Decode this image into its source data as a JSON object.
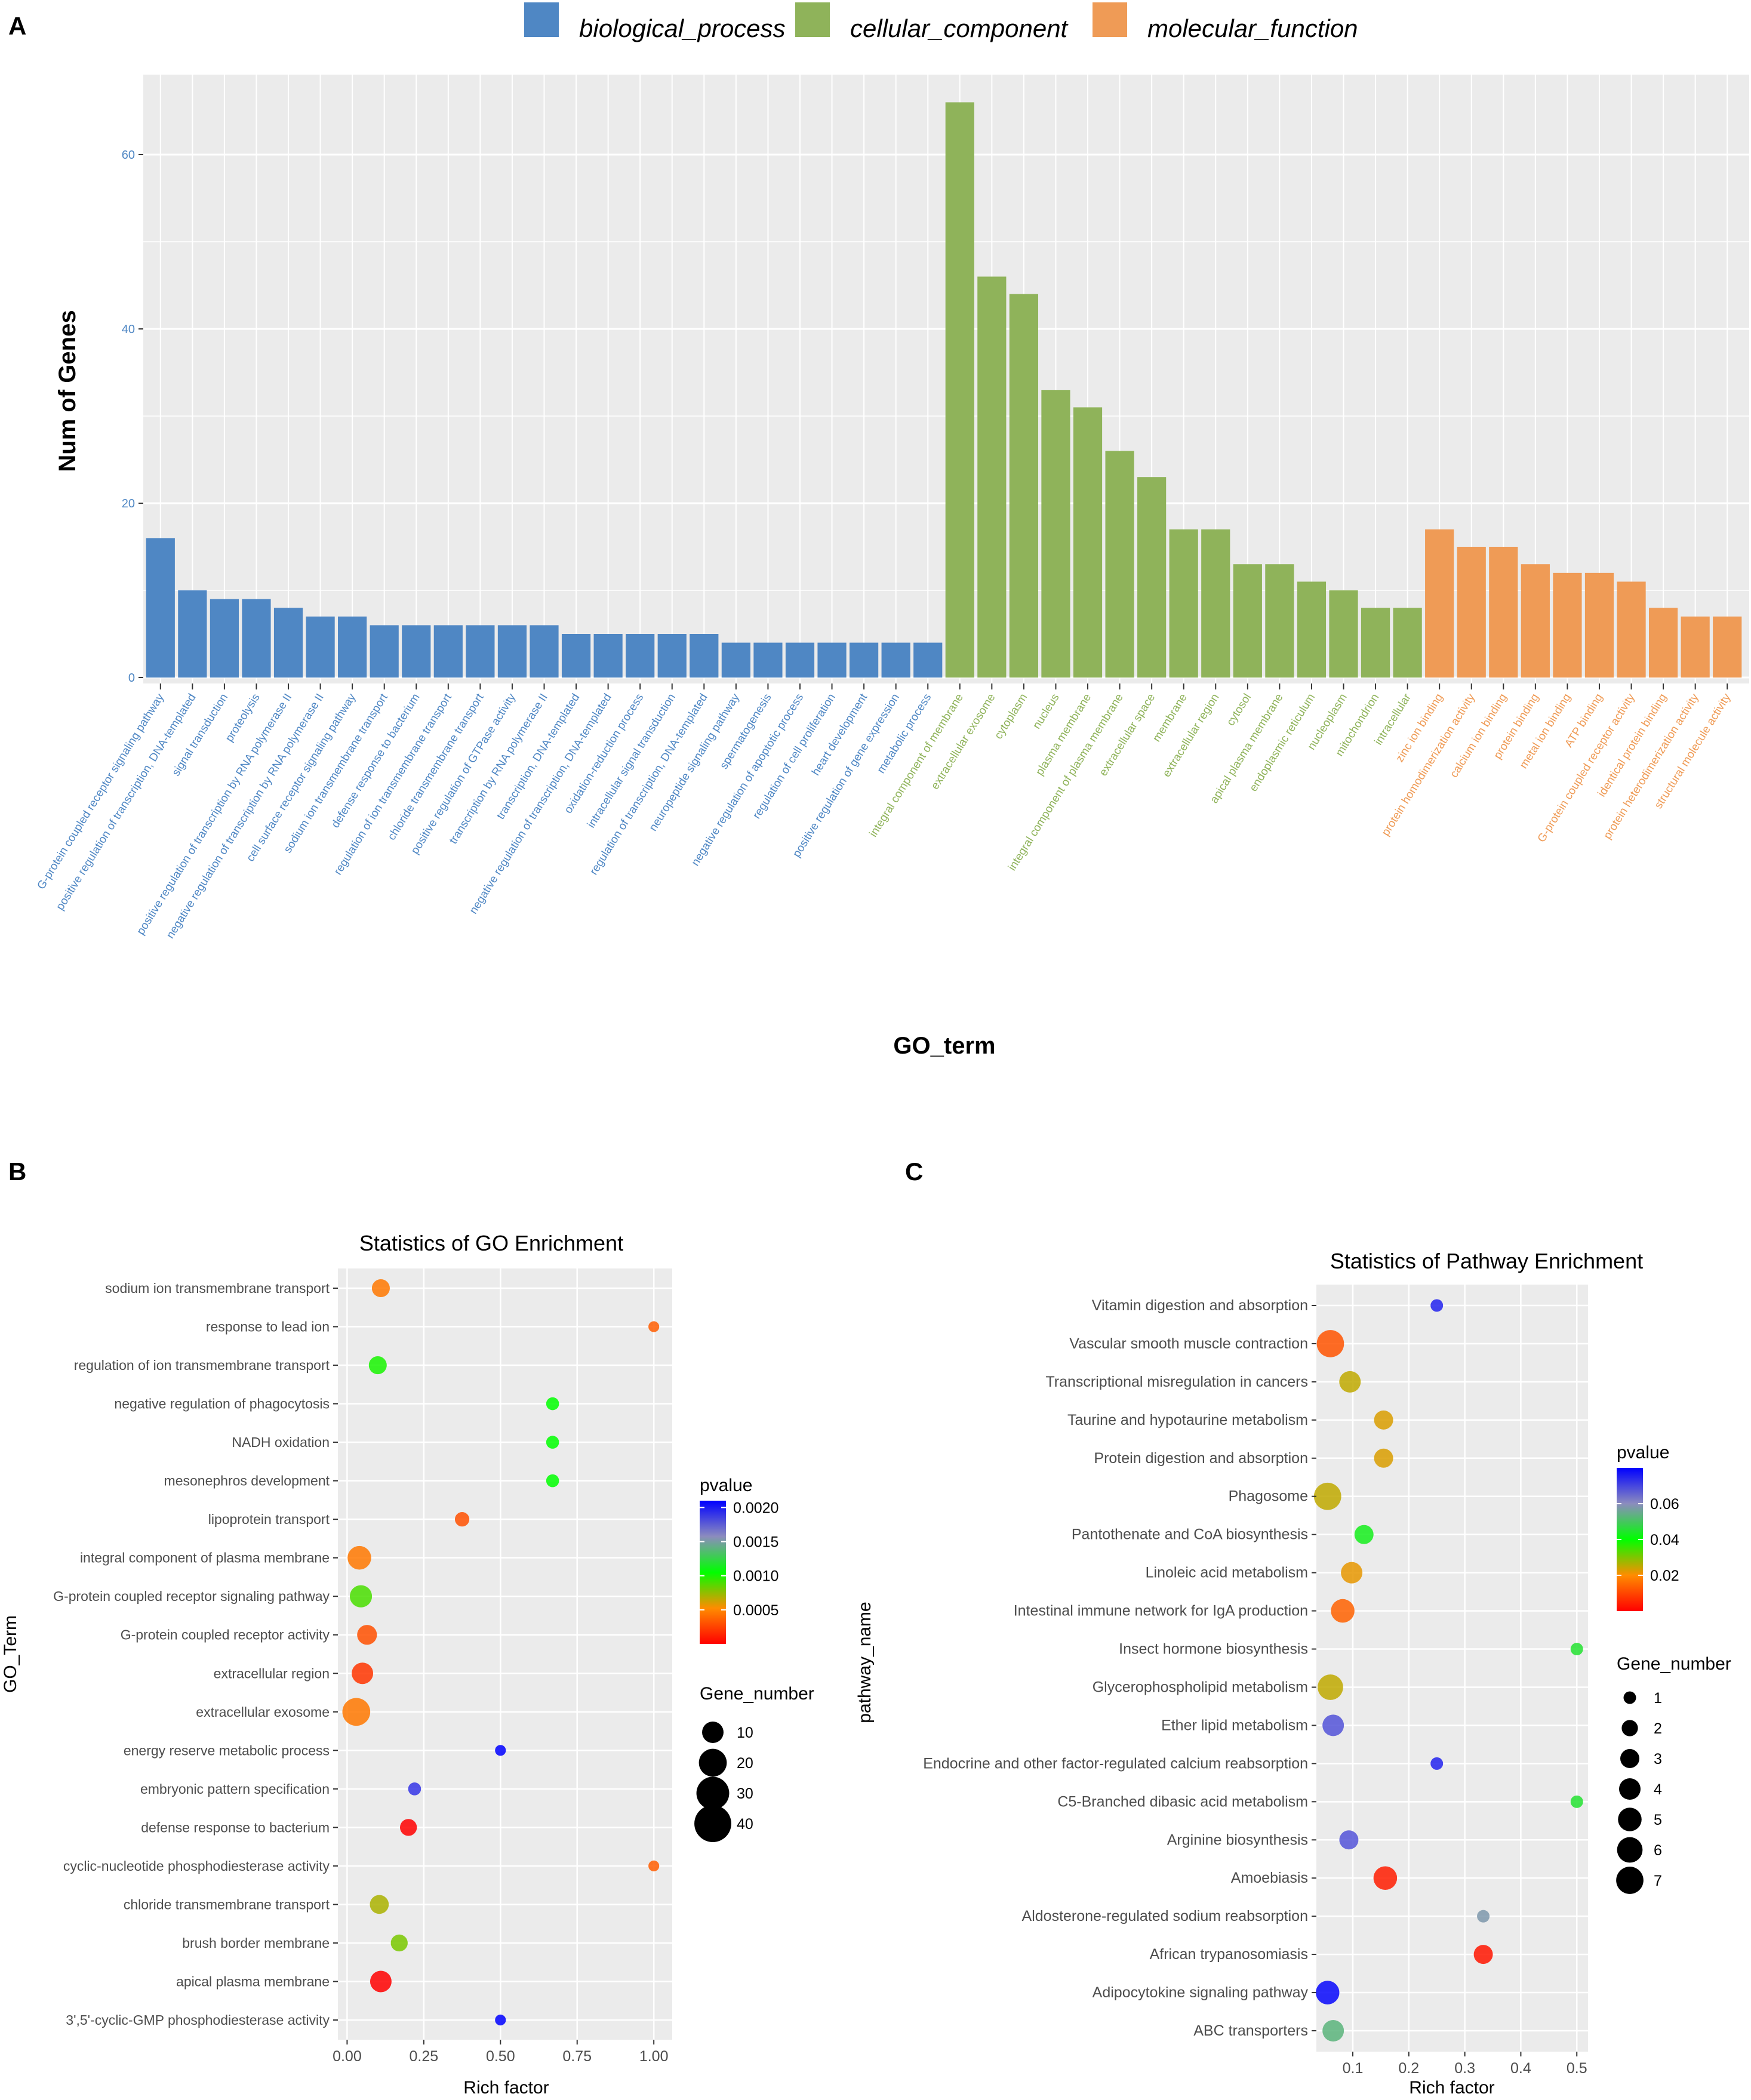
{
  "panels": {
    "A": "A",
    "B": "B",
    "C": "C"
  },
  "colors": {
    "biological_process": "#4f87c4",
    "cellular_component": "#8fb35a",
    "molecular_function": "#ef9b56",
    "panel_bg": "#ebebeb",
    "grid": "#ffffff",
    "pvalue_high": "#0000ff",
    "pvalue_mid": "#00ff00",
    "pvalue_low": "#ff0000"
  },
  "chart_data": [
    {
      "id": "A",
      "type": "bar",
      "title": "",
      "xlabel": "GO_term",
      "ylabel": "Num of Genes",
      "ylim": [
        0,
        70
      ],
      "yticks": [
        "0",
        "20",
        "40",
        "60"
      ],
      "legend": [
        {
          "key": "biological_process",
          "label": "biological_process"
        },
        {
          "key": "cellular_component",
          "label": "cellular_component"
        },
        {
          "key": "molecular_function",
          "label": "molecular_function"
        }
      ],
      "categories": [
        "G-protein coupled receptor signaling pathway",
        "positive regulation of transcription, DNA-templated",
        "signal transduction",
        "proteolysis",
        "positive regulation of transcription by RNA polymerase II",
        "negative regulation of transcription by RNA polymerase II",
        "cell surface receptor signaling pathway",
        "sodium ion transmembrane transport",
        "defense response to bacterium",
        "regulation of ion transmembrane transport",
        "chloride transmembrane transport",
        "positive regulation of GTPase activity",
        "transcription by RNA polymerase II",
        "transcription, DNA-templated",
        "negative regulation of transcription, DNA-templated",
        "oxidation-reduction process",
        "intracellular signal transduction",
        "regulation of transcription, DNA-templated",
        "neuropeptide signaling pathway",
        "spermatogenesis",
        "negative regulation of apoptotic process",
        "regulation of cell proliferation",
        "heart development",
        "positive regulation of gene expression",
        "metabolic process",
        "integral component of membrane",
        "extracellular exosome",
        "cytoplasm",
        "nucleus",
        "plasma membrane",
        "integral component of plasma membrane",
        "extracellular space",
        "membrane",
        "extracellular region",
        "cytosol",
        "apical plasma membrane",
        "endoplasmic reticulum",
        "nucleoplasm",
        "mitochondrion",
        "intracellular",
        "zinc ion binding",
        "protein homodimerization activity",
        "calcium ion binding",
        "protein binding",
        "metal ion binding",
        "ATP binding",
        "G-protein coupled receptor activity",
        "identical protein binding",
        "protein heterodimerization activity",
        "structural molecule activity"
      ],
      "groups": [
        "biological_process",
        "biological_process",
        "biological_process",
        "biological_process",
        "biological_process",
        "biological_process",
        "biological_process",
        "biological_process",
        "biological_process",
        "biological_process",
        "biological_process",
        "biological_process",
        "biological_process",
        "biological_process",
        "biological_process",
        "biological_process",
        "biological_process",
        "biological_process",
        "biological_process",
        "biological_process",
        "biological_process",
        "biological_process",
        "biological_process",
        "biological_process",
        "biological_process",
        "cellular_component",
        "cellular_component",
        "cellular_component",
        "cellular_component",
        "cellular_component",
        "cellular_component",
        "cellular_component",
        "cellular_component",
        "cellular_component",
        "cellular_component",
        "cellular_component",
        "cellular_component",
        "cellular_component",
        "cellular_component",
        "cellular_component",
        "molecular_function",
        "molecular_function",
        "molecular_function",
        "molecular_function",
        "molecular_function",
        "molecular_function",
        "molecular_function",
        "molecular_function",
        "molecular_function",
        "molecular_function"
      ],
      "values": [
        16,
        10,
        9,
        9,
        8,
        7,
        7,
        6,
        6,
        6,
        6,
        6,
        6,
        5,
        5,
        5,
        5,
        5,
        4,
        4,
        4,
        4,
        4,
        4,
        4,
        66,
        46,
        44,
        33,
        31,
        26,
        23,
        17,
        17,
        13,
        13,
        11,
        10,
        8,
        8,
        17,
        15,
        15,
        13,
        12,
        12,
        11,
        8,
        7,
        7
      ]
    },
    {
      "id": "B",
      "type": "scatter",
      "title": "Statistics of GO Enrichment",
      "xlabel": "Rich factor",
      "ylabel": "GO_Term",
      "xlim": [
        -0.03,
        1.06
      ],
      "xticks": [
        "0.00",
        "0.25",
        "0.50",
        "0.75",
        "1.00"
      ],
      "color_legend_title": "pvalue",
      "color_ticks": [
        "0.0020",
        "0.0015",
        "0.0010",
        "0.0005"
      ],
      "color_range": [
        0.0,
        0.0021
      ],
      "size_legend_title": "Gene_number",
      "size_ticks": [
        "10",
        "20",
        "30",
        "40"
      ],
      "size_range": [
        1,
        44
      ],
      "terms": [
        "sodium ion transmembrane transport",
        "response to lead ion",
        "regulation of ion transmembrane transport",
        "negative regulation of phagocytosis",
        "NADH oxidation",
        "mesonephros development",
        "lipoprotein transport",
        "integral component of plasma membrane",
        "G-protein coupled receptor signaling pathway",
        "G-protein coupled receptor activity",
        "extracellular region",
        "extracellular exosome",
        "energy reserve metabolic process",
        "embryonic pattern specification",
        "defense response to bacterium",
        "cyclic-nucleotide phosphodiesterase activity",
        "chloride transmembrane transport",
        "brush border membrane",
        "apical plasma membrane",
        "3',5'-cyclic-GMP phosphodiesterase activity"
      ],
      "rich_factor": [
        0.11,
        1.0,
        0.1,
        0.67,
        0.67,
        0.67,
        0.375,
        0.04,
        0.045,
        0.065,
        0.05,
        0.03,
        0.5,
        0.22,
        0.2,
        1.0,
        0.105,
        0.17,
        0.11,
        0.5
      ],
      "gene_number": [
        6,
        1,
        6,
        2,
        2,
        2,
        3,
        13,
        11,
        8,
        10,
        20,
        1,
        2,
        5,
        1,
        7,
        5,
        10,
        1
      ],
      "pvalue": [
        0.00045,
        0.00035,
        0.001,
        0.00105,
        0.00105,
        0.00105,
        0.0003,
        0.00045,
        0.0009,
        0.0003,
        0.0002,
        0.00045,
        0.0021,
        0.0019,
        0.0,
        0.00035,
        0.0007,
        0.0008,
        0.0,
        0.0021
      ]
    },
    {
      "id": "C",
      "type": "scatter",
      "title": "Statistics of Pathway Enrichment",
      "xlabel": "Rich factor",
      "ylabel": "pathway_name",
      "xlim": [
        0.035,
        0.52
      ],
      "xticks": [
        "0.1",
        "0.2",
        "0.3",
        "0.4",
        "0.5"
      ],
      "color_legend_title": "pvalue",
      "color_ticks": [
        "0.06",
        "0.04",
        "0.02"
      ],
      "color_range": [
        0.0,
        0.08
      ],
      "size_legend_title": "Gene_number",
      "size_ticks": [
        "1",
        "2",
        "3",
        "4",
        "5",
        "6",
        "7"
      ],
      "size_range": [
        1,
        7
      ],
      "terms": [
        "Vitamin digestion and absorption",
        "Vascular smooth muscle contraction",
        "Transcriptional misregulation in cancers",
        "Taurine and hypotaurine metabolism",
        "Protein digestion and absorption",
        "Phagosome",
        "Pantothenate and CoA biosynthesis",
        "Linoleic acid metabolism",
        "Intestinal immune network for IgA production",
        "Insect hormone biosynthesis",
        "Glycerophospholipid metabolism",
        "Ether lipid metabolism",
        "Endocrine and other factor-regulated calcium reabsorption",
        "C5-Branched dibasic acid metabolism",
        "Arginine biosynthesis",
        "Amoebiasis",
        "Aldosterone-regulated sodium reabsorption",
        "African trypanosomiasis",
        "Adipocytokine signaling pathway",
        "ABC transporters"
      ],
      "rich_factor": [
        0.25,
        0.06,
        0.095,
        0.155,
        0.155,
        0.055,
        0.12,
        0.098,
        0.082,
        0.5,
        0.06,
        0.065,
        0.25,
        0.5,
        0.093,
        0.158,
        0.333,
        0.333,
        0.055,
        0.065
      ],
      "gene_number": [
        1,
        7,
        4,
        3,
        3,
        7,
        3,
        4,
        5,
        1,
        6,
        4,
        1,
        1,
        3,
        5,
        1,
        3,
        5,
        4
      ],
      "pvalue": [
        0.075,
        0.012,
        0.025,
        0.023,
        0.023,
        0.025,
        0.043,
        0.022,
        0.014,
        0.045,
        0.025,
        0.068,
        0.075,
        0.045,
        0.068,
        0.004,
        0.058,
        0.003,
        0.079,
        0.053
      ]
    }
  ]
}
